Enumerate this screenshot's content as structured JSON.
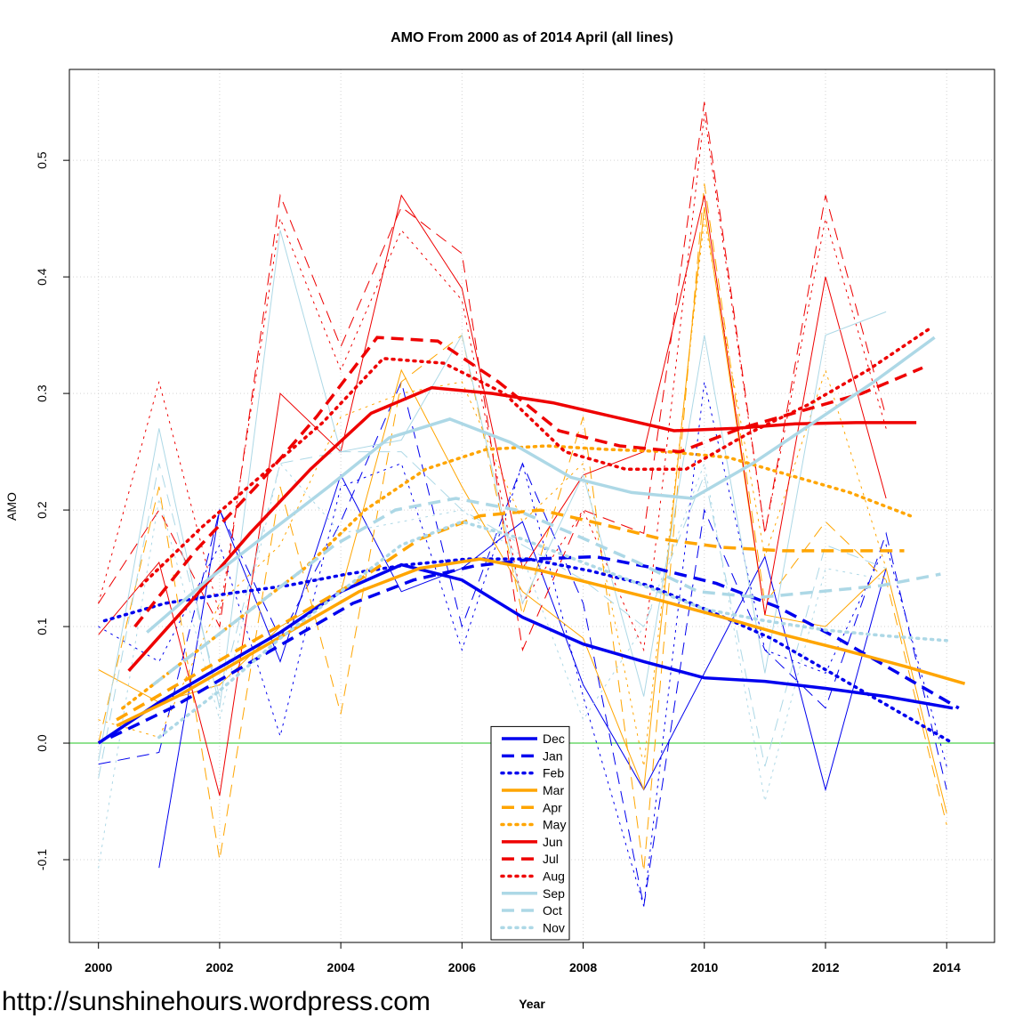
{
  "chart_data": {
    "type": "line",
    "title": "AMO From 2000 as of 2014 April (all lines)",
    "x_label": "Year",
    "y_label": "AMO",
    "watermark": "http://sunshinehours.wordpress.com",
    "xlim": [
      1999.52,
      2014.79
    ],
    "ylim": [
      -0.171,
      0.578
    ],
    "xticks": [
      2000,
      2002,
      2004,
      2006,
      2008,
      2010,
      2012,
      2014
    ],
    "yticks": [
      -0.1,
      {
        "value": 0,
        "label": "0.0"
      },
      0.1,
      0.2,
      0.3,
      0.4,
      0.5
    ],
    "grid": true,
    "hline": 0,
    "hline_color": "#22c422",
    "legend": "bottom-center",
    "x": [
      2000,
      2001,
      2002,
      2003,
      2004,
      2005,
      2006,
      2007,
      2008,
      2009,
      2010,
      2011,
      2012,
      2013,
      2014
    ],
    "series": [
      {
        "name": "Dec",
        "color": "#0000ee",
        "dash": "solid",
        "values": [
          null,
          -0.107,
          0.2,
          0.07,
          0.23,
          0.13,
          0.15,
          0.19,
          0.05,
          -0.04,
          0.06,
          0.16,
          -0.04,
          0.15,
          null
        ],
        "trend_x": [
          2000,
          2001,
          2002,
          2003,
          2004,
          2005,
          2006,
          2007,
          2008,
          2009,
          2010,
          2011,
          2012,
          2013,
          2014.1
        ],
        "trend_values": [
          0,
          0.035,
          0.065,
          0.095,
          0.13,
          0.153,
          0.14,
          0.108,
          0.085,
          0.07,
          0.056,
          0.053,
          0.047,
          0.04,
          0.03
        ]
      },
      {
        "name": "Jan",
        "color": "#0000ee",
        "dash": "dashed",
        "values": [
          -0.018,
          -0.008,
          0.2,
          0.09,
          0.19,
          0.31,
          0.1,
          0.24,
          0.12,
          -0.14,
          0.2,
          0.08,
          0.03,
          0.18,
          -0.04
        ],
        "trend_x": [
          2000.2,
          2001.2,
          2002.2,
          2003.2,
          2004.2,
          2005.2,
          2006.2,
          2007.2,
          2008.2,
          2009.2,
          2010.2,
          2011.2,
          2012.2,
          2013.2,
          2014.2
        ],
        "trend_values": [
          0.005,
          0.03,
          0.06,
          0.09,
          0.12,
          0.14,
          0.152,
          0.158,
          0.16,
          0.15,
          0.137,
          0.117,
          0.09,
          0.06,
          0.03
        ]
      },
      {
        "name": "Feb",
        "color": "#0000ee",
        "dash": "dotted",
        "values": [
          0.1,
          0.07,
          0.17,
          0.006,
          0.22,
          0.24,
          0.08,
          0.24,
          0.04,
          -0.14,
          0.31,
          0.08,
          0.06,
          0.17,
          -0.02
        ],
        "trend_x": [
          2000.1,
          2001.1,
          2002.1,
          2003.1,
          2004.1,
          2005.1,
          2006.1,
          2007.1,
          2008.1,
          2009.1,
          2010.1,
          2011.1,
          2012.1,
          2013.1,
          2014.1
        ],
        "trend_values": [
          0.105,
          0.12,
          0.128,
          0.135,
          0.145,
          0.153,
          0.158,
          0.158,
          0.148,
          0.135,
          0.113,
          0.09,
          0.06,
          0.03,
          0.0
        ]
      },
      {
        "name": "Mar",
        "color": "#ffa500",
        "dash": "solid",
        "values": [
          0.063,
          0.035,
          0.05,
          0.1,
          0.13,
          0.32,
          0.22,
          0.13,
          0.09,
          -0.04,
          0.46,
          0.11,
          0.1,
          0.15,
          -0.06
        ],
        "trend_x": [
          2000.3,
          2001.3,
          2002.3,
          2003.3,
          2004.3,
          2005.3,
          2006.3,
          2007.3,
          2008.3,
          2009.3,
          2010.3,
          2011.3,
          2012.3,
          2013.3,
          2014.3
        ],
        "trend_values": [
          0.015,
          0.04,
          0.07,
          0.1,
          0.13,
          0.15,
          0.158,
          0.148,
          0.135,
          0.122,
          0.108,
          0.093,
          0.08,
          0.066,
          0.051
        ]
      },
      {
        "name": "Apr",
        "color": "#ffa500",
        "dash": "dashed",
        "values": [
          0.0,
          0.22,
          -0.1,
          0.22,
          0.025,
          0.31,
          0.35,
          0.11,
          0.28,
          -0.11,
          0.48,
          0.12,
          0.19,
          0.14,
          -0.07
        ],
        "trend_x": [
          2000.3,
          2001.3,
          2002.3,
          2003.3,
          2004.3,
          2005.3,
          2006.3,
          2007.3,
          2008.3,
          2009.3,
          2010.3,
          2011.3,
          2012.3,
          2013.3
        ],
        "trend_values": [
          0.02,
          0.05,
          0.08,
          0.11,
          0.14,
          0.175,
          0.195,
          0.2,
          0.188,
          0.175,
          0.168,
          0.165,
          0.165,
          0.165
        ]
      },
      {
        "name": "May",
        "color": "#ffa500",
        "dash": "dotted",
        "values": [
          0.02,
          0.005,
          0.12,
          0.17,
          0.28,
          0.3,
          0.31,
          0.19,
          0.24,
          -0.02,
          0.45,
          0.16,
          0.32,
          0.15,
          null
        ],
        "trend_x": [
          2000.4,
          2001.4,
          2002.4,
          2003.4,
          2004.4,
          2005.4,
          2006.4,
          2007.4,
          2008.4,
          2009.4,
          2010.4,
          2011.4,
          2012.4,
          2013.4
        ],
        "trend_values": [
          0.03,
          0.07,
          0.11,
          0.15,
          0.2,
          0.235,
          0.252,
          0.255,
          0.252,
          0.25,
          0.245,
          0.23,
          0.215,
          0.195
        ]
      },
      {
        "name": "Jun",
        "color": "#ee0000",
        "dash": "solid",
        "values": [
          0.093,
          0.155,
          -0.045,
          0.3,
          0.25,
          0.47,
          0.39,
          0.15,
          0.23,
          0.25,
          0.47,
          0.11,
          0.4,
          0.21,
          null
        ],
        "trend_x": [
          2000.5,
          2001.5,
          2002.5,
          2003.5,
          2004.5,
          2005.5,
          2006.5,
          2007.5,
          2008.5,
          2009.5,
          2010.5,
          2011.5,
          2012.5,
          2013.5
        ],
        "trend_values": [
          0.062,
          0.12,
          0.18,
          0.235,
          0.283,
          0.305,
          0.3,
          0.292,
          0.28,
          0.268,
          0.27,
          0.274,
          0.275,
          0.275
        ]
      },
      {
        "name": "Jul",
        "color": "#ee0000",
        "dash": "dashed",
        "values": [
          0.12,
          0.2,
          0.1,
          0.47,
          0.34,
          0.46,
          0.42,
          0.08,
          0.2,
          0.18,
          0.55,
          0.18,
          0.47,
          0.28,
          null
        ],
        "trend_x": [
          2000.6,
          2001.6,
          2002.6,
          2003.6,
          2004.6,
          2005.6,
          2006.6,
          2007.6,
          2008.6,
          2009.6,
          2010.6,
          2011.6,
          2012.6,
          2013.6
        ],
        "trend_values": [
          0.1,
          0.165,
          0.22,
          0.28,
          0.348,
          0.345,
          0.31,
          0.268,
          0.255,
          0.25,
          0.27,
          0.285,
          0.3,
          0.322
        ]
      },
      {
        "name": "Aug",
        "color": "#ee0000",
        "dash": "dotted",
        "values": [
          0.12,
          0.31,
          0.11,
          0.45,
          0.32,
          0.44,
          0.38,
          0.12,
          0.2,
          0.08,
          0.54,
          0.18,
          0.45,
          0.27,
          null
        ],
        "trend_x": [
          2000.7,
          2001.7,
          2002.7,
          2003.7,
          2004.7,
          2005.7,
          2006.7,
          2007.7,
          2008.7,
          2009.7,
          2010.7,
          2011.7,
          2012.7,
          2013.7
        ],
        "trend_values": [
          0.135,
          0.185,
          0.23,
          0.275,
          0.33,
          0.326,
          0.3,
          0.25,
          0.235,
          0.235,
          0.265,
          0.29,
          0.32,
          0.355
        ]
      },
      {
        "name": "Sep",
        "color": "#add8e6",
        "dash": "solid",
        "values": [
          -0.015,
          0.27,
          0.03,
          0.44,
          0.25,
          0.26,
          0.35,
          0.12,
          0.23,
          0.04,
          0.35,
          0.06,
          0.35,
          0.37,
          null
        ],
        "trend_x": [
          2000.8,
          2001.8,
          2002.8,
          2003.8,
          2004.8,
          2005.8,
          2006.8,
          2007.8,
          2008.8,
          2009.8,
          2010.8,
          2011.8,
          2012.8,
          2013.8
        ],
        "trend_values": [
          0.095,
          0.14,
          0.18,
          0.22,
          0.262,
          0.278,
          0.258,
          0.228,
          0.215,
          0.21,
          0.24,
          0.275,
          0.31,
          0.348
        ]
      },
      {
        "name": "Oct",
        "color": "#add8e6",
        "dash": "dashed",
        "values": [
          -0.03,
          0.24,
          0.04,
          0.24,
          0.25,
          0.25,
          0.2,
          0.17,
          0.14,
          0.1,
          0.23,
          -0.02,
          0.17,
          0.15,
          null
        ],
        "trend_x": [
          2000.9,
          2001.9,
          2002.9,
          2003.9,
          2004.9,
          2005.9,
          2006.9,
          2007.9,
          2008.9,
          2009.9,
          2010.9,
          2011.9,
          2012.9,
          2013.9
        ],
        "trend_values": [
          0.05,
          0.09,
          0.13,
          0.17,
          0.2,
          0.21,
          0.2,
          0.178,
          0.155,
          0.13,
          0.125,
          0.13,
          0.135,
          0.145
        ]
      },
      {
        "name": "Nov",
        "color": "#add8e6",
        "dash": "dotted",
        "values": [
          -0.107,
          0.21,
          0.02,
          0.24,
          0.18,
          0.19,
          0.2,
          0.16,
          0.02,
          0.1,
          0.24,
          -0.05,
          0.15,
          0.14,
          null
        ],
        "trend_x": [
          2001,
          2002,
          2003,
          2004,
          2005,
          2006,
          2007,
          2008,
          2009,
          2010,
          2011,
          2012,
          2013,
          2014
        ],
        "trend_values": [
          0.005,
          0.045,
          0.09,
          0.13,
          0.17,
          0.19,
          0.175,
          0.155,
          0.135,
          0.115,
          0.105,
          0.097,
          0.092,
          0.088
        ]
      }
    ]
  }
}
